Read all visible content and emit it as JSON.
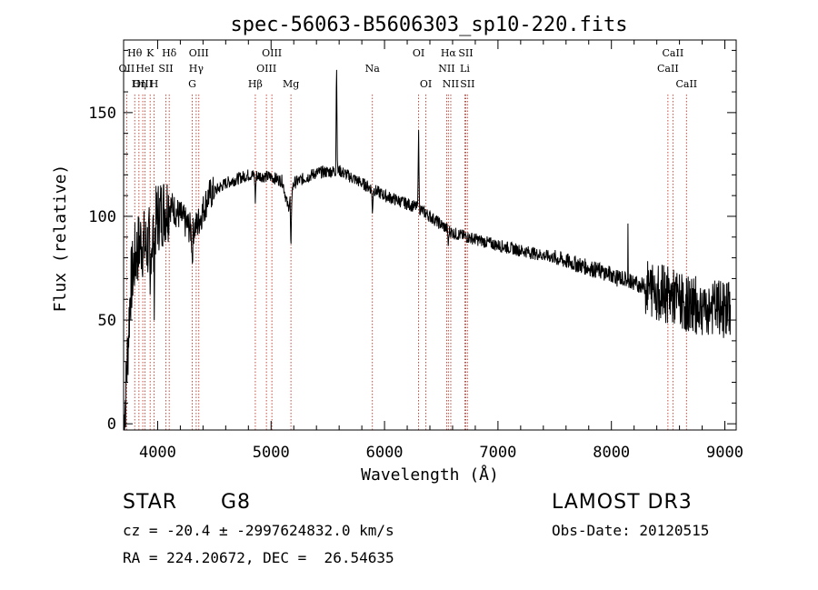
{
  "chart_data": {
    "type": "line",
    "title": "spec-56063-B5606303_sp10-220.fits",
    "xlabel": "Wavelength (Å)",
    "ylabel": "Flux (relative)",
    "xlim": [
      3700,
      9100
    ],
    "ylim": [
      -3,
      185
    ],
    "xticks": [
      4000,
      5000,
      6000,
      7000,
      8000,
      9000
    ],
    "yticks": [
      0,
      50,
      100,
      150
    ],
    "spectral_lines": [
      {
        "label": "Hθ",
        "wavelength": 3798,
        "row": 0
      },
      {
        "label": "OII",
        "wavelength": 3727,
        "row": 1
      },
      {
        "label": "OIII",
        "wavelength": 3869,
        "row": 2
      },
      {
        "label": "K",
        "wavelength": 3934,
        "row": 0
      },
      {
        "label": "HeI",
        "wavelength": 3889,
        "row": 1
      },
      {
        "label": "Hη",
        "wavelength": 3835,
        "row": 2
      },
      {
        "label": "H",
        "wavelength": 3969,
        "row": 2
      },
      {
        "label": "SII",
        "wavelength": 4072,
        "row": 1
      },
      {
        "label": "Hδ",
        "wavelength": 4102,
        "row": 0
      },
      {
        "label": "OIII",
        "wavelength": 4363,
        "row": 0
      },
      {
        "label": "Hγ",
        "wavelength": 4340,
        "row": 1
      },
      {
        "label": "G",
        "wavelength": 4305,
        "row": 2
      },
      {
        "label": "Hβ",
        "wavelength": 4861,
        "row": 2
      },
      {
        "label": "OIII",
        "wavelength": 5007,
        "row": 0
      },
      {
        "label": "OIII",
        "wavelength": 4959,
        "row": 1
      },
      {
        "label": "Mg",
        "wavelength": 5175,
        "row": 2
      },
      {
        "label": "Na",
        "wavelength": 5893,
        "row": 1
      },
      {
        "label": "OI",
        "wavelength": 6300,
        "row": 0
      },
      {
        "label": "OI",
        "wavelength": 6364,
        "row": 2
      },
      {
        "label": "Hα",
        "wavelength": 6563,
        "row": 0
      },
      {
        "label": "SII",
        "wavelength": 6716,
        "row": 0
      },
      {
        "label": "NII",
        "wavelength": 6548,
        "row": 1
      },
      {
        "label": "Li",
        "wavelength": 6708,
        "row": 1
      },
      {
        "label": "NII",
        "wavelength": 6584,
        "row": 2
      },
      {
        "label": "SII",
        "wavelength": 6731,
        "row": 2
      },
      {
        "label": "CaII",
        "wavelength": 8542,
        "row": 0
      },
      {
        "label": "CaII",
        "wavelength": 8498,
        "row": 1
      },
      {
        "label": "CaII",
        "wavelength": 8662,
        "row": 2
      }
    ],
    "continuum_anchors": [
      [
        3700,
        0
      ],
      [
        3720,
        15
      ],
      [
        3760,
        65
      ],
      [
        3800,
        80
      ],
      [
        3850,
        88
      ],
      [
        3900,
        85
      ],
      [
        3950,
        90
      ],
      [
        4000,
        100
      ],
      [
        4100,
        106
      ],
      [
        4200,
        100
      ],
      [
        4300,
        93
      ],
      [
        4350,
        96
      ],
      [
        4450,
        110
      ],
      [
        4600,
        116
      ],
      [
        4800,
        120
      ],
      [
        5000,
        119
      ],
      [
        5100,
        117
      ],
      [
        5150,
        104
      ],
      [
        5200,
        116
      ],
      [
        5400,
        121
      ],
      [
        5600,
        122
      ],
      [
        5800,
        116
      ],
      [
        6000,
        110
      ],
      [
        6300,
        104
      ],
      [
        6600,
        92
      ],
      [
        7000,
        86
      ],
      [
        7500,
        80
      ],
      [
        8000,
        72
      ],
      [
        8500,
        62
      ],
      [
        8700,
        57
      ],
      [
        9050,
        55
      ]
    ],
    "features": [
      {
        "wavelength": 3934,
        "depth": -35
      },
      {
        "wavelength": 3969,
        "depth": -30
      },
      {
        "wavelength": 4305,
        "depth": -15
      },
      {
        "wavelength": 4861,
        "depth": -12
      },
      {
        "wavelength": 5175,
        "depth": -30
      },
      {
        "wavelength": 5577,
        "depth": 55
      },
      {
        "wavelength": 5893,
        "depth": -12
      },
      {
        "wavelength": 6300,
        "depth": 40
      },
      {
        "wavelength": 6563,
        "depth": -8
      }
    ]
  },
  "info": {
    "object_class": "STAR",
    "subclass": "G8",
    "survey": "LAMOST DR3",
    "redshift_line": "cz = -20.4 ± -2997624832.0 km/s",
    "obs_date": "Obs-Date: 20120515",
    "coords": "RA = 224.20672, DEC =  26.54635"
  }
}
